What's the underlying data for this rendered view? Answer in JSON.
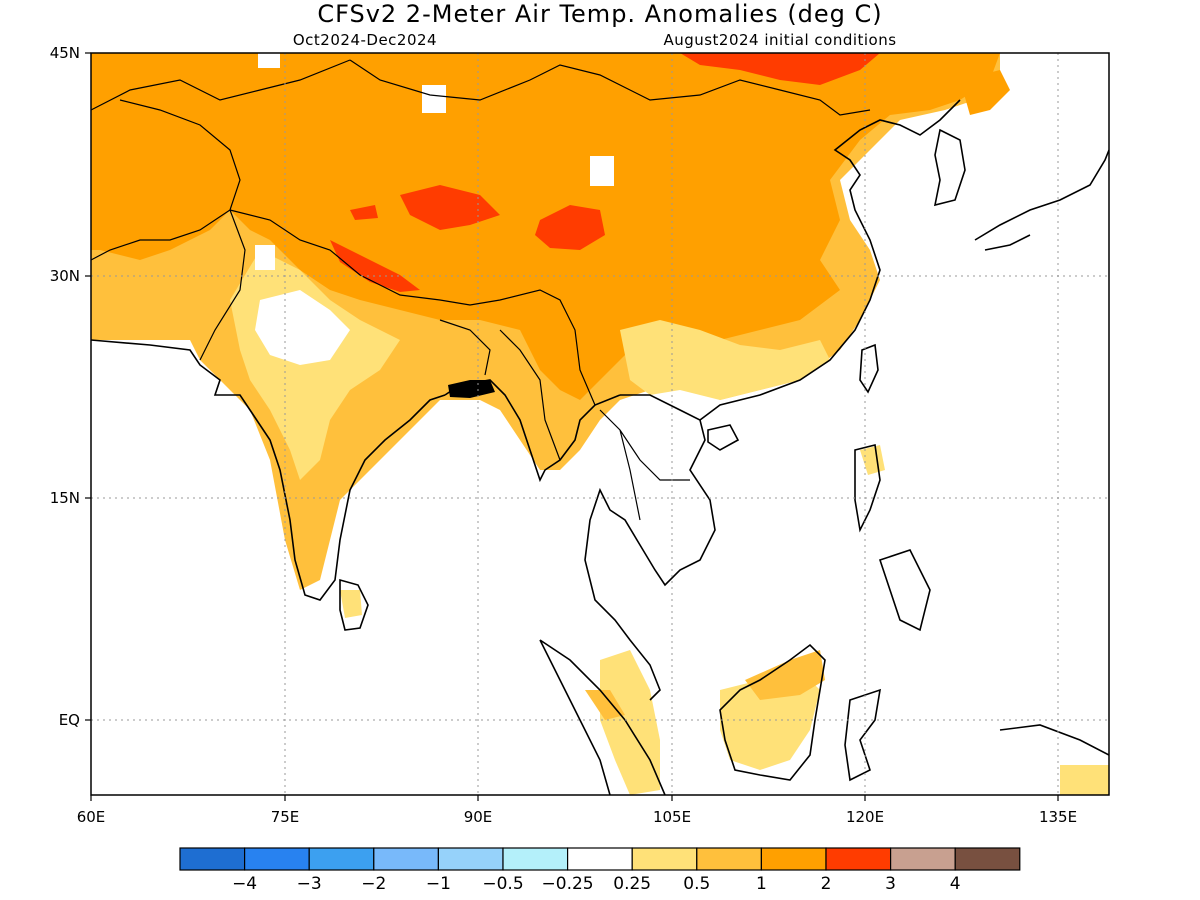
{
  "title": "CFSv2 2-Meter Air Temp. Anomalies (deg C)",
  "subtitle_left": "Oct2024-Dec2024",
  "subtitle_right": "August2024 initial conditions",
  "map": {
    "lon_range": [
      60,
      140
    ],
    "lat_range": [
      -6,
      45
    ],
    "x_ticks": [
      "60E",
      "75E",
      "90E",
      "105E",
      "120E",
      "135E"
    ],
    "y_ticks": [
      "45N",
      "30N",
      "15N",
      "EQ"
    ],
    "grid_lines": "dotted",
    "land_outline_color": "#000000"
  },
  "legend": {
    "labels": [
      "-4",
      "-3",
      "-2",
      "-1",
      "-0.5",
      "-0.25",
      "0.25",
      "0.5",
      "1",
      "2",
      "3",
      "4"
    ],
    "colors": [
      "#1e6ed2",
      "#2882f0",
      "#3ca0f0",
      "#78b9fa",
      "#96d2fa",
      "#b4f0fa",
      "#ffffff",
      "#ffe178",
      "#ffc03c",
      "#ffa000",
      "#ff3c00",
      "#c8a090",
      "#785040"
    ]
  }
}
